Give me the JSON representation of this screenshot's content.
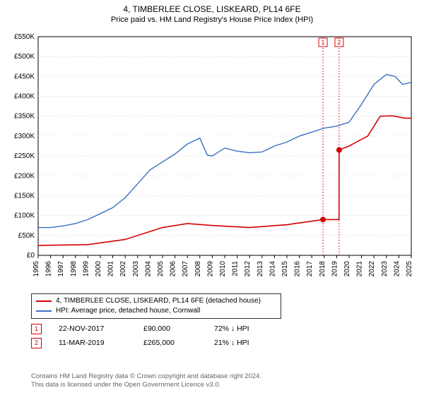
{
  "title": "4, TIMBERLEE CLOSE, LISKEARD, PL14 6FE",
  "subtitle": "Price paid vs. HM Land Registry's House Price Index (HPI)",
  "chart": {
    "type": "line",
    "background_color": "#ffffff",
    "grid_color": "#bbbbbb",
    "axis_color": "#000000",
    "axis_font_size": 10,
    "x": {
      "min": 1995,
      "max": 2025,
      "ticks": [
        1995,
        1996,
        1997,
        1998,
        1999,
        2000,
        2001,
        2002,
        2003,
        2004,
        2005,
        2006,
        2007,
        2008,
        2009,
        2010,
        2011,
        2012,
        2013,
        2014,
        2015,
        2016,
        2017,
        2018,
        2019,
        2020,
        2021,
        2022,
        2023,
        2024,
        2025
      ]
    },
    "y": {
      "min": 0,
      "max": 550000,
      "ticks": [
        0,
        50000,
        100000,
        150000,
        200000,
        250000,
        300000,
        350000,
        400000,
        450000,
        500000,
        550000
      ],
      "tick_labels": [
        "£0",
        "£50K",
        "£100K",
        "£150K",
        "£200K",
        "£250K",
        "£300K",
        "£350K",
        "£400K",
        "£450K",
        "£500K",
        "£550K"
      ]
    },
    "series": [
      {
        "id": "price_paid",
        "label": "4, TIMBERLEE CLOSE, LISKEARD, PL14 6FE (detached house)",
        "color": "#d40000",
        "line_width": 1.6,
        "points": [
          [
            1995,
            25000
          ],
          [
            1999,
            27000
          ],
          [
            2002,
            40000
          ],
          [
            2005,
            70000
          ],
          [
            2007,
            80000
          ],
          [
            2009,
            75000
          ],
          [
            2012,
            70000
          ],
          [
            2015,
            77000
          ],
          [
            2017.9,
            90000
          ],
          [
            2017.901,
            90000
          ],
          [
            2019.19,
            90000
          ],
          [
            2019.2,
            265000
          ],
          [
            2020,
            275000
          ],
          [
            2021.5,
            300000
          ],
          [
            2022.5,
            350000
          ],
          [
            2023.5,
            351000
          ],
          [
            2024.5,
            345000
          ],
          [
            2025,
            345000
          ]
        ]
      },
      {
        "id": "hpi",
        "label": "HPI: Average price, detached house, Cornwall",
        "color": "#3b6fc5",
        "line_width": 1.4,
        "points": [
          [
            1995,
            70000
          ],
          [
            1996,
            70000
          ],
          [
            1997,
            74000
          ],
          [
            1998,
            80000
          ],
          [
            1999,
            90000
          ],
          [
            2000,
            105000
          ],
          [
            2001,
            120000
          ],
          [
            2002,
            145000
          ],
          [
            2003,
            180000
          ],
          [
            2004,
            215000
          ],
          [
            2005,
            235000
          ],
          [
            2006,
            255000
          ],
          [
            2007,
            280000
          ],
          [
            2008,
            295000
          ],
          [
            2008.6,
            252000
          ],
          [
            2009,
            250000
          ],
          [
            2010,
            270000
          ],
          [
            2011,
            262000
          ],
          [
            2012,
            258000
          ],
          [
            2013,
            260000
          ],
          [
            2014,
            275000
          ],
          [
            2015,
            285000
          ],
          [
            2016,
            300000
          ],
          [
            2017,
            310000
          ],
          [
            2018,
            320000
          ],
          [
            2019,
            325000
          ],
          [
            2020,
            335000
          ],
          [
            2021,
            380000
          ],
          [
            2022,
            430000
          ],
          [
            2023,
            455000
          ],
          [
            2023.7,
            450000
          ],
          [
            2024.3,
            430000
          ],
          [
            2025,
            435000
          ]
        ]
      }
    ],
    "sale_markers": [
      {
        "n": "1",
        "x": 2017.9,
        "y": 90000,
        "color": "#d40000"
      },
      {
        "n": "2",
        "x": 2019.2,
        "y": 265000,
        "color": "#d40000"
      }
    ]
  },
  "legend": {
    "items": [
      {
        "color": "#d40000",
        "label": "4, TIMBERLEE CLOSE, LISKEARD, PL14 6FE (detached house)"
      },
      {
        "color": "#3b6fc5",
        "label": "HPI: Average price, detached house, Cornwall"
      }
    ]
  },
  "sales": [
    {
      "n": "1",
      "color": "#d40000",
      "date": "22-NOV-2017",
      "price": "£90,000",
      "delta": "72% ↓ HPI"
    },
    {
      "n": "2",
      "color": "#d40000",
      "date": "11-MAR-2019",
      "price": "£265,000",
      "delta": "21% ↓ HPI"
    }
  ],
  "footer": {
    "line1": "Contains HM Land Registry data © Crown copyright and database right 2024.",
    "line2": "This data is licensed under the Open Government Licence v3.0."
  }
}
